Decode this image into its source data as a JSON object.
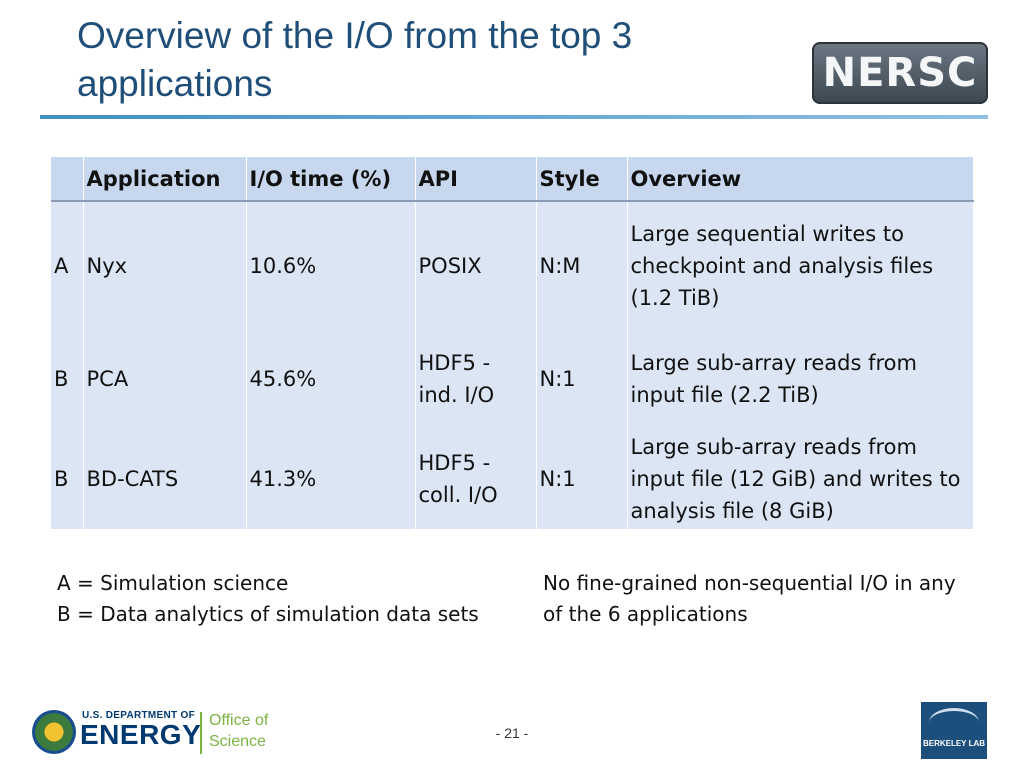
{
  "slide": {
    "title": "Overview of the I/O from the top 3 applications",
    "page_number": "- 21 -"
  },
  "logos": {
    "nersc": "NERSC",
    "doe_small": "U.S. DEPARTMENT OF",
    "doe_big": "ENERGY",
    "office_line1": "Office of",
    "office_line2": "Science",
    "berkeley": "BERKELEY LAB"
  },
  "table": {
    "headers": [
      "",
      "Application",
      "I/O time (%)",
      "API",
      "Style",
      "Overview"
    ],
    "rows": [
      [
        "A",
        "Nyx",
        "10.6%",
        "POSIX",
        "N:M",
        "Large sequential writes to checkpoint and analysis files (1.2 TiB)"
      ],
      [
        "B",
        "PCA",
        "45.6%",
        "HDF5 - ind. I/O",
        "N:1",
        "Large sub-array reads from input file (2.2 TiB)"
      ],
      [
        "B",
        "BD-CATS",
        "41.3%",
        "HDF5 - coll. I/O",
        "N:1",
        "Large sub-array reads from input file (12 GiB) and writes to analysis file (8 GiB)"
      ]
    ]
  },
  "legend": {
    "a": "A = Simulation science",
    "b": "B = Data analytics of simulation data sets"
  },
  "note": "No fine-grained non-sequential I/O in any of the 6 applications",
  "colors": {
    "title": "#1f4e79",
    "header_bg": "#c6d7ee",
    "row_bg": "#dbe5f3",
    "rule": "#3f8fc4"
  }
}
